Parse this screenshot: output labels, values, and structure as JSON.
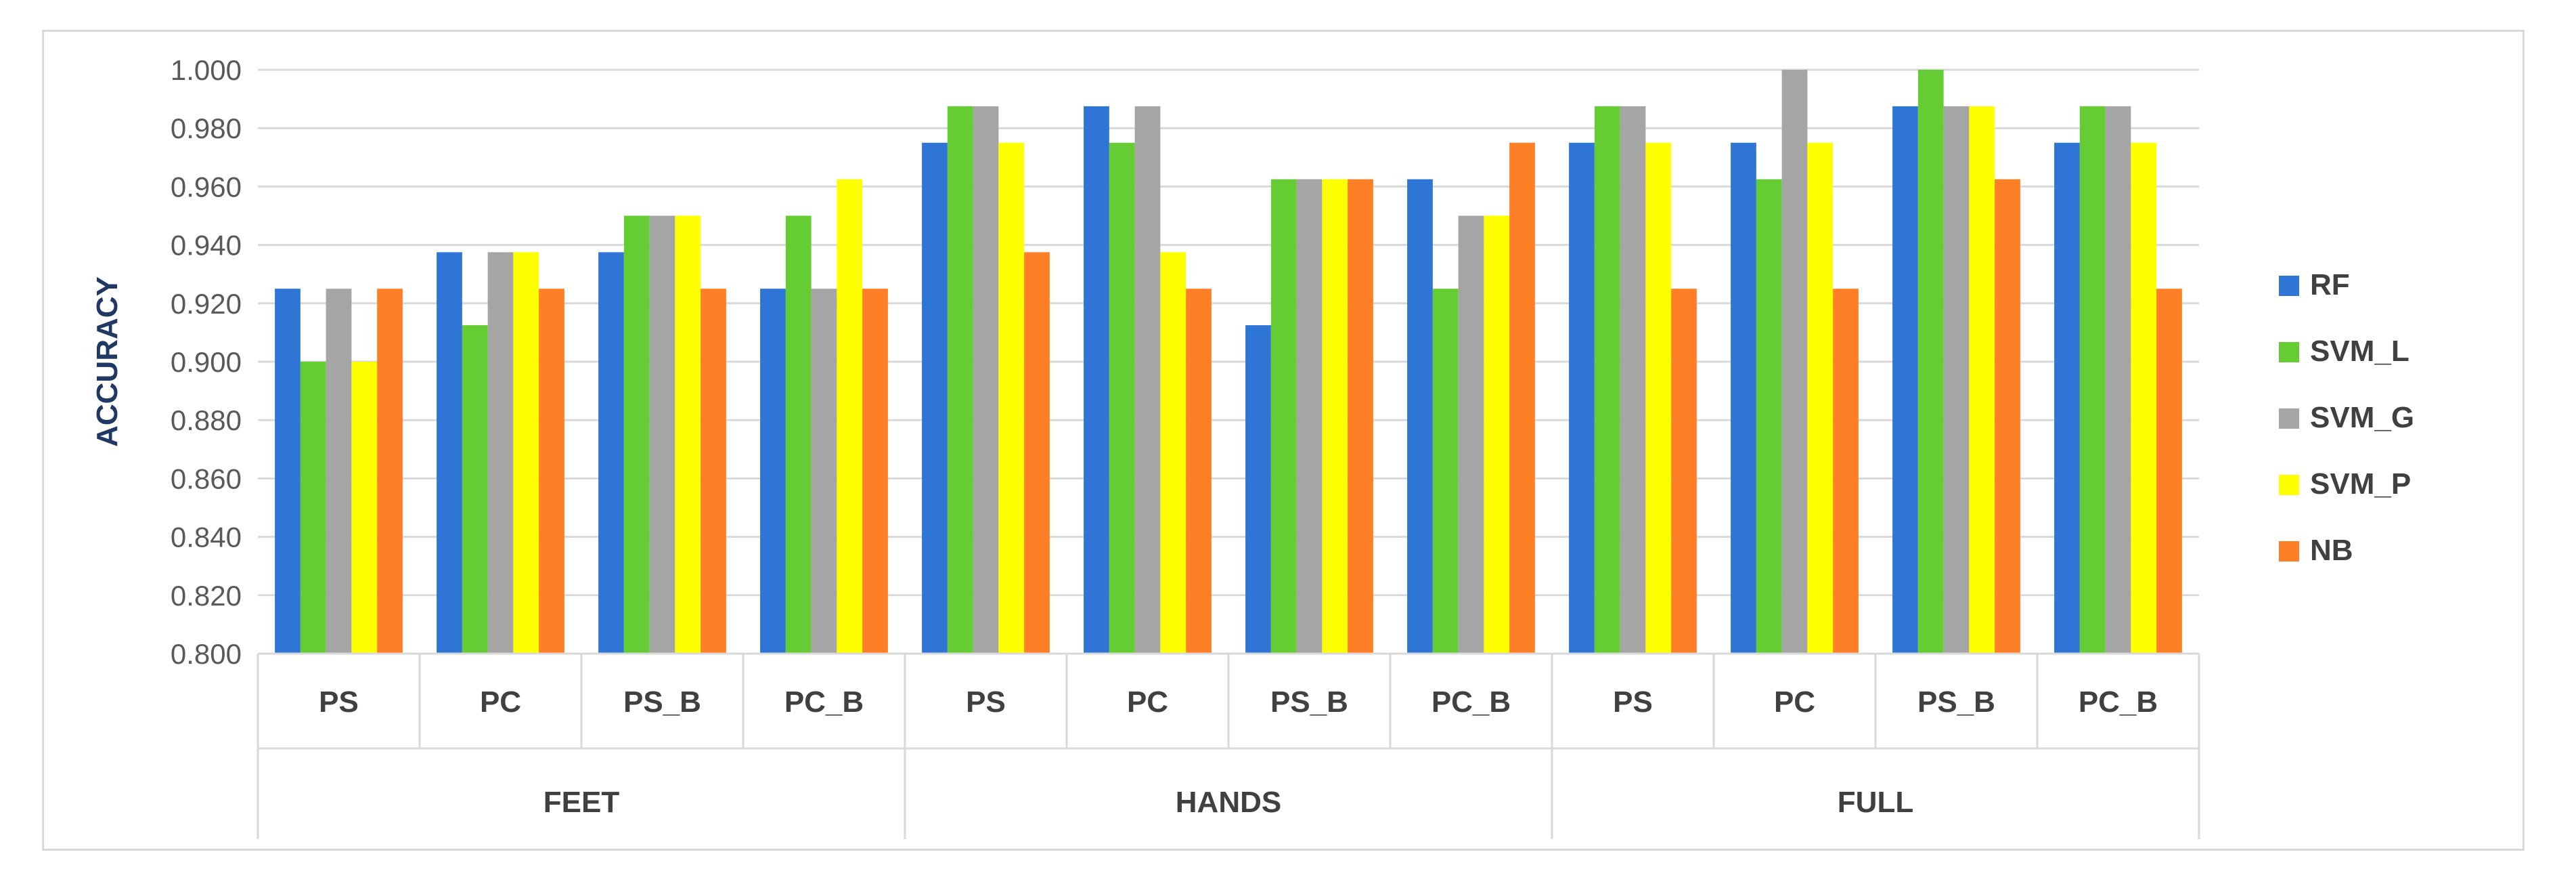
{
  "chart_data": {
    "type": "bar",
    "title": "",
    "xlabel": "",
    "ylabel": "ACCURACY",
    "ylim": [
      0.8,
      1.0
    ],
    "ytick_step": 0.02,
    "ytick_format": "0.000",
    "grid": true,
    "legend_position": "right",
    "groups": [
      {
        "label": "FEET",
        "categories": [
          "PS",
          "PC",
          "PS_B",
          "PC_B"
        ]
      },
      {
        "label": "HANDS",
        "categories": [
          "PS",
          "PC",
          "PS_B",
          "PC_B"
        ]
      },
      {
        "label": "FULL",
        "categories": [
          "PS",
          "PC",
          "PS_B",
          "PC_B"
        ]
      }
    ],
    "series": [
      {
        "name": "RF",
        "color": "#2e75d6",
        "values": [
          0.925,
          0.9375,
          0.9375,
          0.925,
          0.975,
          0.9875,
          0.9125,
          0.9625,
          0.975,
          0.975,
          0.9875,
          0.975
        ]
      },
      {
        "name": "SVM_L",
        "color": "#66cc33",
        "values": [
          0.9,
          0.9125,
          0.95,
          0.95,
          0.9875,
          0.975,
          0.9625,
          0.925,
          0.9875,
          0.9625,
          1.0,
          0.9875
        ]
      },
      {
        "name": "SVM_G",
        "color": "#a5a5a5",
        "values": [
          0.925,
          0.9375,
          0.95,
          0.925,
          0.9875,
          0.9875,
          0.9625,
          0.95,
          0.9875,
          1.0,
          0.9875,
          0.9875
        ]
      },
      {
        "name": "SVM_P",
        "color": "#ffff00",
        "values": [
          0.9,
          0.9375,
          0.95,
          0.9625,
          0.975,
          0.9375,
          0.9625,
          0.95,
          0.975,
          0.975,
          0.9875,
          0.975
        ]
      },
      {
        "name": "NB",
        "color": "#ff7f27",
        "values": [
          0.925,
          0.925,
          0.925,
          0.925,
          0.9375,
          0.925,
          0.9625,
          0.975,
          0.925,
          0.925,
          0.9625,
          0.925
        ]
      }
    ]
  }
}
